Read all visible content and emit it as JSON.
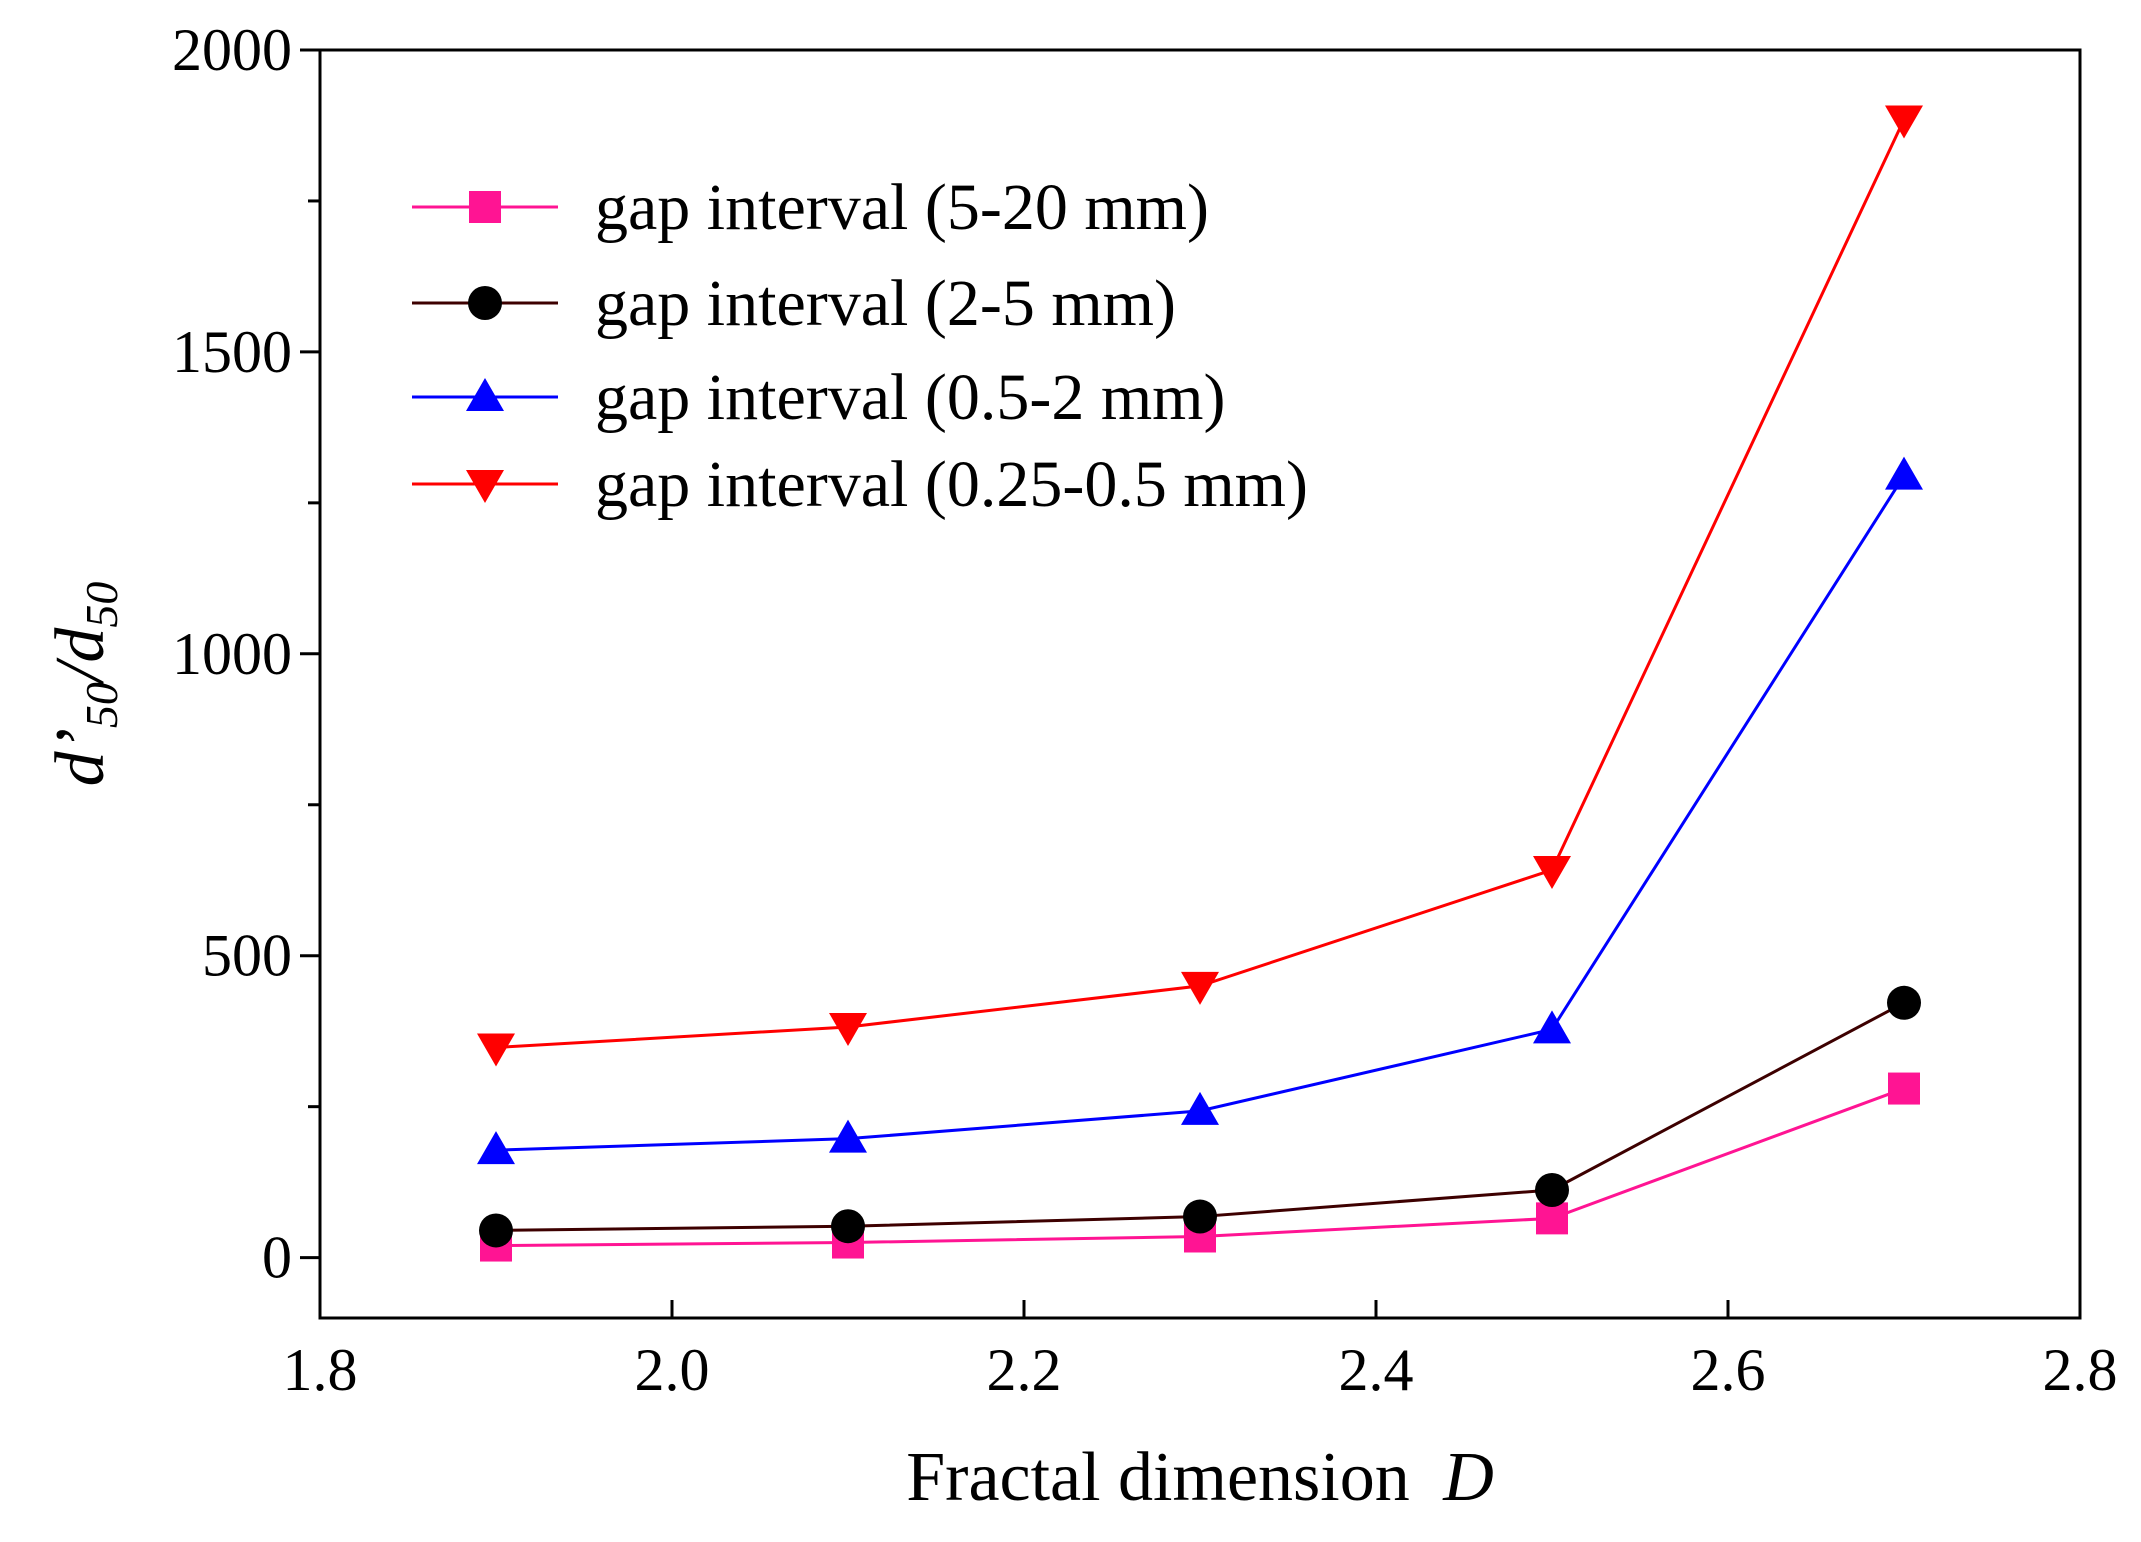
{
  "chart_data": {
    "type": "line",
    "title": "",
    "xlabel": "Fractal dimension",
    "xlabel_var": "D",
    "ylabel": {
      "d_prime": "d’",
      "sub1": "50",
      "slash": "/d",
      "sub2": "50"
    },
    "xlim": [
      1.8,
      2.8
    ],
    "ylim": [
      -100,
      2000
    ],
    "x_ticks": [
      1.8,
      2.0,
      2.2,
      2.4,
      2.6,
      2.8
    ],
    "x_tick_labels": [
      "1.8",
      "2.0",
      "2.2",
      "2.4",
      "2.6",
      "2.8"
    ],
    "y_ticks": [
      0,
      500,
      1000,
      1500,
      2000
    ],
    "y_tick_labels": [
      "0",
      "500",
      "1000",
      "1500",
      "2000"
    ],
    "y_minor_ticks": [
      250,
      750,
      1250,
      1750
    ],
    "grid": false,
    "legend_position": "top-left",
    "x": [
      1.9,
      2.1,
      2.3,
      2.5,
      2.7
    ],
    "series": [
      {
        "name": "gap interval (5-20 mm)",
        "marker": "square",
        "color": "#ff1493",
        "values": [
          20,
          25,
          35,
          65,
          280
        ]
      },
      {
        "name": "gap interval (2-5 mm)",
        "marker": "circle",
        "color": "#000000",
        "line_color": "#3d0000",
        "values": [
          45,
          52,
          68,
          112,
          422
        ]
      },
      {
        "name": "gap interval (0.5-2 mm)",
        "marker": "triangle-up",
        "color": "#0000ff",
        "values": [
          178,
          197,
          243,
          378,
          1295
        ]
      },
      {
        "name": "gap interval (0.25-0.5 mm)",
        "marker": "triangle-down",
        "color": "#ff0000",
        "values": [
          348,
          382,
          450,
          642,
          1885
        ]
      }
    ]
  }
}
